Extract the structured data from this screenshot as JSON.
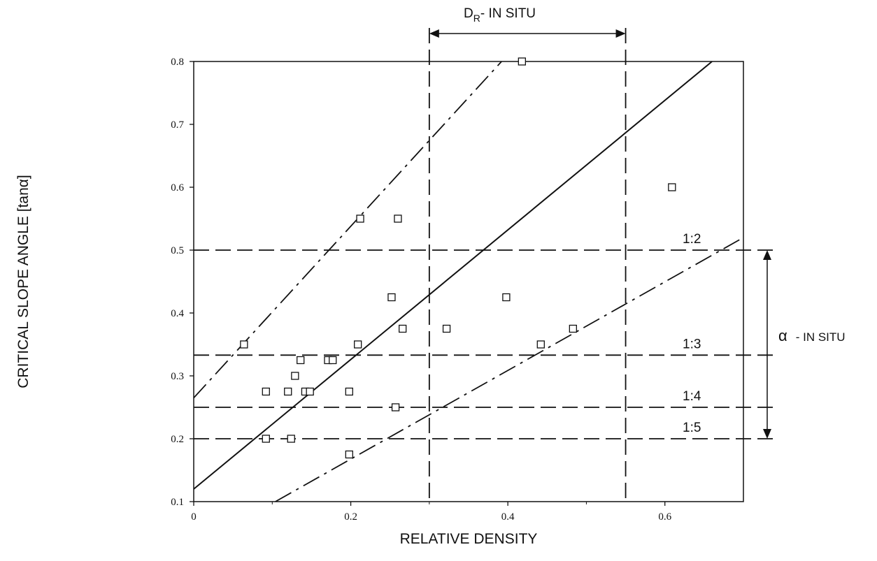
{
  "chart_data": {
    "type": "scatter",
    "title": "",
    "xlabel": "RELATIVE DENSITY",
    "ylabel": "CRITICAL SLOPE ANGLE [tanα]",
    "xlim": [
      0,
      0.7
    ],
    "ylim": [
      0.1,
      0.8
    ],
    "x_ticks": [
      0,
      0.2,
      0.4,
      0.6
    ],
    "x_tick_labels": [
      "0",
      "0.2",
      "0.4",
      "0.6"
    ],
    "y_ticks": [
      0.1,
      0.2,
      0.3,
      0.4,
      0.5,
      0.6,
      0.7,
      0.8
    ],
    "y_tick_labels": [
      "0.1",
      "0.2",
      "0.3",
      "0.4",
      "0.5",
      "0.6",
      "0.7",
      "0.8"
    ],
    "grid": false,
    "points": [
      {
        "x": 0.064,
        "y": 0.35
      },
      {
        "x": 0.092,
        "y": 0.275
      },
      {
        "x": 0.092,
        "y": 0.2
      },
      {
        "x": 0.12,
        "y": 0.275
      },
      {
        "x": 0.124,
        "y": 0.2
      },
      {
        "x": 0.129,
        "y": 0.3
      },
      {
        "x": 0.136,
        "y": 0.325
      },
      {
        "x": 0.142,
        "y": 0.275
      },
      {
        "x": 0.148,
        "y": 0.275
      },
      {
        "x": 0.171,
        "y": 0.325
      },
      {
        "x": 0.177,
        "y": 0.325
      },
      {
        "x": 0.198,
        "y": 0.275
      },
      {
        "x": 0.198,
        "y": 0.175
      },
      {
        "x": 0.209,
        "y": 0.35
      },
      {
        "x": 0.212,
        "y": 0.55
      },
      {
        "x": 0.252,
        "y": 0.425
      },
      {
        "x": 0.257,
        "y": 0.25
      },
      {
        "x": 0.26,
        "y": 0.55
      },
      {
        "x": 0.266,
        "y": 0.375
      },
      {
        "x": 0.322,
        "y": 0.375
      },
      {
        "x": 0.398,
        "y": 0.425
      },
      {
        "x": 0.418,
        "y": 0.8
      },
      {
        "x": 0.442,
        "y": 0.35
      },
      {
        "x": 0.483,
        "y": 0.375
      },
      {
        "x": 0.609,
        "y": 0.6
      }
    ],
    "fit_lines": [
      {
        "style": "solid",
        "x1": 0,
        "y1": 0.12,
        "x2": 0.66,
        "y2": 0.8
      },
      {
        "style": "dash-dot",
        "x1": 0,
        "y1": 0.265,
        "x2": 0.392,
        "y2": 0.8
      },
      {
        "style": "dash-dot",
        "x1": 0.104,
        "y1": 0.1,
        "x2": 0.7,
        "y2": 0.52
      }
    ],
    "reference_lines": [
      {
        "axis": "y",
        "value": 0.5,
        "label": "1:2"
      },
      {
        "axis": "y",
        "value": 0.333,
        "label": "1:3"
      },
      {
        "axis": "y",
        "value": 0.25,
        "label": "1:4"
      },
      {
        "axis": "y",
        "value": 0.2,
        "label": "1:5"
      },
      {
        "axis": "x",
        "value": 0.3
      },
      {
        "axis": "x",
        "value": 0.55
      }
    ],
    "ranges": {
      "dr_in_situ": {
        "label": "D",
        "subscript": "R",
        "suffix": "- IN SITU",
        "from": 0.3,
        "to": 0.55
      },
      "alpha_in_situ": {
        "label": "α",
        "suffix": "- IN SITU",
        "from": 0.2,
        "to": 0.5
      }
    }
  }
}
